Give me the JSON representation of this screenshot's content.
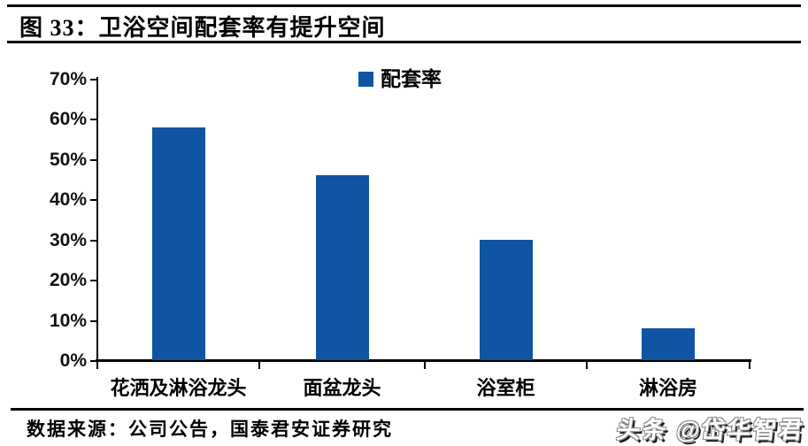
{
  "header": {
    "title": "图 33：卫浴空间配套率有提升空间"
  },
  "chart_data": {
    "type": "bar",
    "title": "卫浴空间配套率有提升空间",
    "legend": "配套率",
    "categories": [
      "花洒及淋浴龙头",
      "面盆龙头",
      "浴室柜",
      "淋浴房"
    ],
    "values": [
      58,
      46,
      30,
      8
    ],
    "unit": "%",
    "ylim": [
      0,
      70
    ],
    "yticks": [
      "0%",
      "10%",
      "20%",
      "30%",
      "40%",
      "50%",
      "60%",
      "70%"
    ],
    "grid": false,
    "legend_position": "top-center",
    "bar_color": "#0F55A1",
    "axis_color": "#000000"
  },
  "footer": {
    "source": "数据来源：公司公告，国泰君安证券研究"
  },
  "watermark": {
    "text": "头条 @岱华智君"
  }
}
